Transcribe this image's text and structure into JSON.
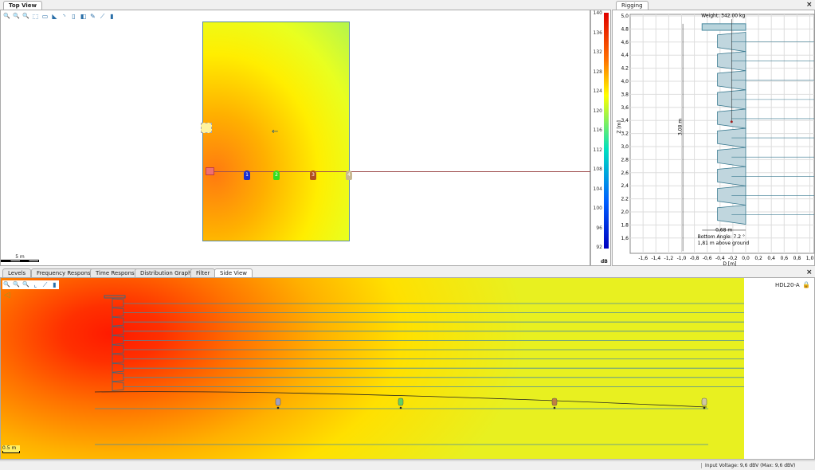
{
  "top_view": {
    "tab": "Top View",
    "scale_label": "5 m",
    "toolbar": [
      "zoom-in-icon",
      "zoom-out-icon",
      "zoom-fit-icon",
      "select-area-icon",
      "rect-icon",
      "quarter-circle-icon",
      "arc-icon",
      "trapezoid-icon",
      "polygon-icon",
      "pencil-icon",
      "measure-icon",
      "microphone-icon"
    ],
    "speakers": [
      {
        "label": "1",
        "color": "#1a2fd0"
      },
      {
        "label": "2",
        "color": "#33dd22"
      },
      {
        "label": "3",
        "color": "#b05020"
      },
      {
        "label": "4",
        "color": "#c8b890"
      }
    ]
  },
  "colorbar": {
    "unit": "dB",
    "ticks": [
      "140",
      "136",
      "132",
      "128",
      "124",
      "120",
      "116",
      "112",
      "108",
      "104",
      "100",
      "96",
      "92"
    ],
    "min": 92,
    "max": 140
  },
  "rigging": {
    "tab": "Rigging",
    "weight": "Weight: 342.00 kg",
    "height_label": "3,08 m",
    "width_label": "0,68 m",
    "bottom_angle": "Bottom Angle: 7.2 °",
    "above_ground": "1,81 m above ground",
    "xlabel": "D [m]",
    "ylabel": "Z [m]",
    "xticks": [
      "-1,6",
      "-1,4",
      "-1,2",
      "-1,0",
      "-0,8",
      "-0,6",
      "-0,4",
      "-0,2",
      "0,0",
      "0,2",
      "0,4",
      "0,6",
      "0,8",
      "1,0"
    ],
    "yticks": [
      "5,0",
      "4,8",
      "4,6",
      "4,4",
      "4,2",
      "4,0",
      "3,8",
      "3,6",
      "3,4",
      "3,2",
      "3,0",
      "2,8",
      "2,6",
      "2,4",
      "2,2",
      "2,0",
      "1,8",
      "1,6"
    ],
    "elements": 10
  },
  "bottom_tabs": [
    {
      "label": "Levels"
    },
    {
      "label": "Frequency Response"
    },
    {
      "label": "Time Response"
    },
    {
      "label": "Distribution Graph"
    },
    {
      "label": "Filter"
    },
    {
      "label": "Side View",
      "active": true
    }
  ],
  "side_view": {
    "model": "HDL20-A",
    "scale_label": "0.5 m",
    "toolbar": [
      "zoom-in-icon",
      "zoom-out-icon",
      "zoom-fit-icon",
      "chart-icon",
      "line-icon",
      "microphone-icon"
    ]
  },
  "status": {
    "input_voltage": "Input Voltage: 9,6 dBV (Max: 9,6 dBV)"
  }
}
